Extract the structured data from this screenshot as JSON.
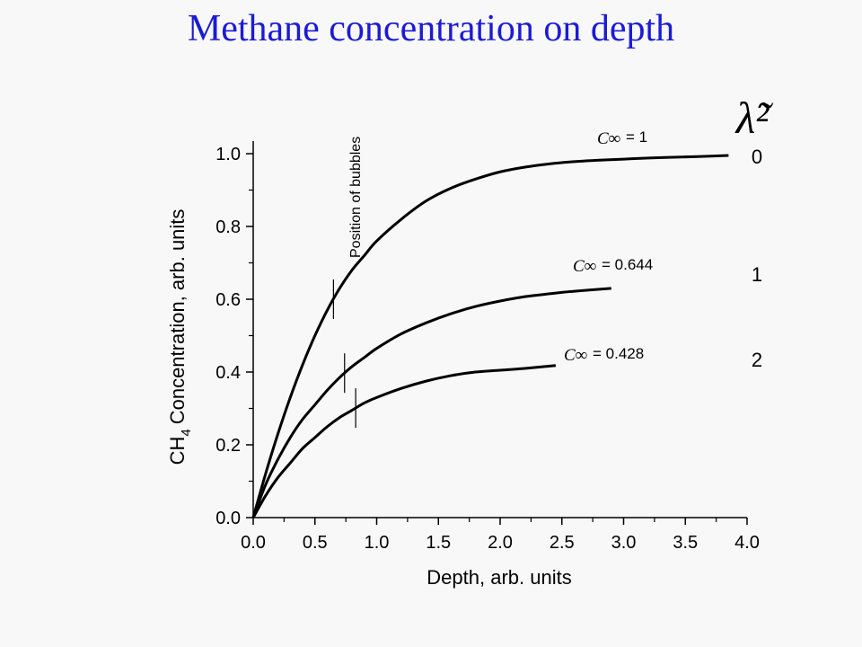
{
  "chart_data": {
    "type": "line",
    "title": "Methane concentration on depth",
    "xlabel": "Depth, arb. units",
    "ylabel": "Concentration, arb. units",
    "ylabel_prefix": "CH",
    "ylabel_subscript": "4",
    "xlim": [
      0,
      4
    ],
    "ylim": [
      0,
      1.0
    ],
    "xticks": [
      "0.0",
      "0.5",
      "1.0",
      "1.5",
      "2.0",
      "2.5",
      "3.0",
      "3.5",
      "4.0"
    ],
    "yticks": [
      "0.0",
      "0.2",
      "0.4",
      "0.6",
      "0.8",
      "1.0"
    ],
    "grid": false,
    "lambda_header": "λ̃²",
    "cinf_symbol": "C∞",
    "annotation": "Position of bubbles",
    "series": [
      {
        "name": "0",
        "cinf_label": "= 1",
        "x": [
          0,
          0.1,
          0.2,
          0.3,
          0.4,
          0.5,
          0.6,
          0.7,
          0.8,
          0.9,
          1.0,
          1.2,
          1.4,
          1.6,
          1.8,
          2.0,
          2.2,
          2.4,
          2.6,
          2.8,
          3.0,
          3.2,
          3.4,
          3.6,
          3.85
        ],
        "y": [
          0,
          0.12,
          0.23,
          0.33,
          0.42,
          0.5,
          0.57,
          0.63,
          0.68,
          0.72,
          0.76,
          0.82,
          0.87,
          0.905,
          0.93,
          0.95,
          0.963,
          0.972,
          0.978,
          0.982,
          0.985,
          0.988,
          0.99,
          0.992,
          0.995
        ],
        "bubble_x": 0.65
      },
      {
        "name": "1",
        "cinf_label": "= 0.644",
        "x": [
          0,
          0.1,
          0.2,
          0.3,
          0.4,
          0.5,
          0.6,
          0.7,
          0.8,
          0.9,
          1.0,
          1.2,
          1.4,
          1.6,
          1.8,
          2.0,
          2.2,
          2.4,
          2.6,
          2.9
        ],
        "y": [
          0,
          0.09,
          0.16,
          0.22,
          0.27,
          0.31,
          0.35,
          0.385,
          0.415,
          0.44,
          0.465,
          0.505,
          0.535,
          0.56,
          0.58,
          0.595,
          0.607,
          0.615,
          0.622,
          0.63
        ],
        "bubble_x": 0.74
      },
      {
        "name": "2",
        "cinf_label": "= 0.428",
        "x": [
          0,
          0.1,
          0.2,
          0.3,
          0.4,
          0.5,
          0.6,
          0.7,
          0.8,
          0.9,
          1.0,
          1.2,
          1.4,
          1.6,
          1.8,
          2.0,
          2.2,
          2.45
        ],
        "y": [
          0,
          0.06,
          0.11,
          0.15,
          0.19,
          0.22,
          0.25,
          0.275,
          0.295,
          0.315,
          0.33,
          0.355,
          0.375,
          0.39,
          0.4,
          0.405,
          0.41,
          0.418
        ],
        "bubble_x": 0.83
      }
    ]
  }
}
